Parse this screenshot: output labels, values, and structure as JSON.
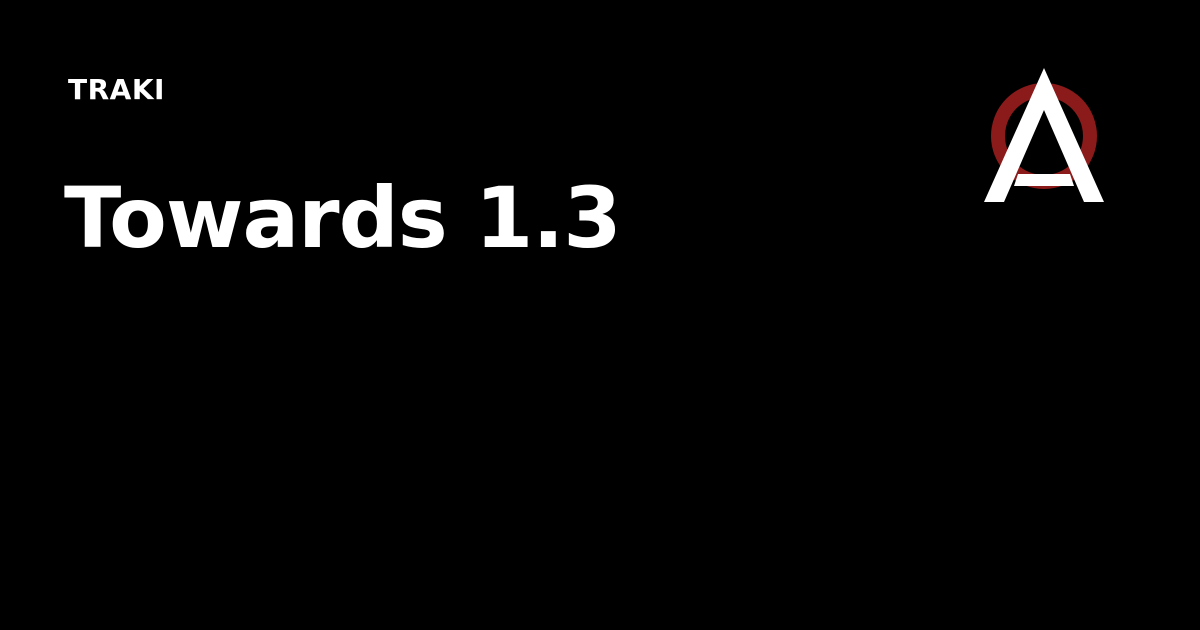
{
  "site": {
    "name": "TRAKI"
  },
  "post": {
    "title": "Towards 1.3"
  },
  "logo": {
    "icon": "anarchy-a-logo-icon",
    "ring_color": "#8b1a1a",
    "letter_color": "#ffffff"
  },
  "colors": {
    "background": "#000000",
    "text": "#ffffff"
  }
}
